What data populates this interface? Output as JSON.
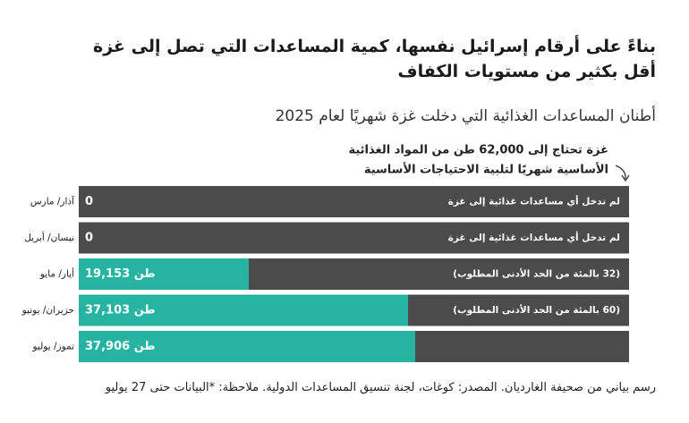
{
  "chart_data": {
    "type": "bar",
    "orientation": "horizontal",
    "title": "بناءً على أرقام إسرائيل نفسها، كمية المساعدات التي تصل إلى غزة أقل بكثير من مستويات الكفاف",
    "subtitle": "أطنان المساعدات الغذائية التي دخلت غزة شهريًا لعام 2025",
    "annotation": [
      "غزة تحتاج إلى 62,000 طن من المواد الغذائية",
      "الأساسية شهريًا لتلبية الاحتياجات الأساسية"
    ],
    "categories": [
      "آذار/ مارس",
      "نيسان/ أبريل",
      "أيار/ مايو",
      "حزيران/ يونيو",
      "تموز/ يوليو"
    ],
    "values": [
      0,
      0,
      19153,
      37103,
      37906
    ],
    "value_labels": [
      "0",
      "0",
      "19,153 طن",
      "37,103 طن",
      "37,906 طن"
    ],
    "bar_notes": [
      "لم تدخل أي مساعدات غذائية إلى غزة",
      "لم تدخل أي مساعدات غذائية إلى غزة",
      "(32 بالمئة من الحد الأدنى المطلوب)",
      "(60 بالمئة من الحد الأدنى المطلوب)",
      null
    ],
    "xlim": [
      0,
      62000
    ],
    "color": "#27b3a2",
    "track_color": "#4b4b4b",
    "footer": "رسم بياني من صحيفة الغارديان. المصدر: كوغات، لجنة تنسيق المساعدات الدولية. ملاحظة: *البيانات حتى 27 يوليو"
  }
}
